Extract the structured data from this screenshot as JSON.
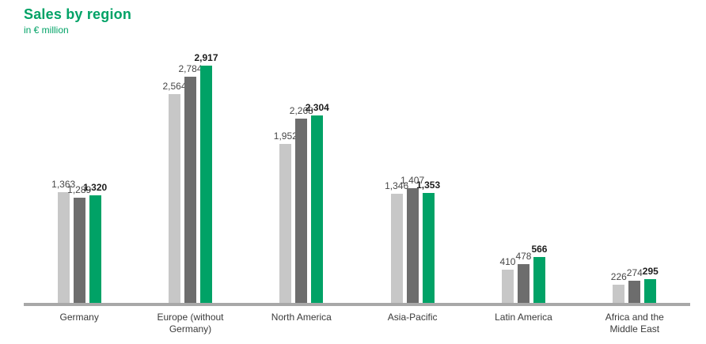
{
  "header": {
    "title": "Sales by region",
    "subtitle": "in € million"
  },
  "colors": {
    "accent_green": "#00a266",
    "bar_light_gray": "#c7c7c7",
    "bar_dark_gray": "#6d6d6d",
    "baseline_gray": "#a8a8a8"
  },
  "chart_data": {
    "type": "bar",
    "title": "Sales by region",
    "unit": "in € million",
    "categories": [
      "Germany",
      "Europe (without Germany)",
      "North America",
      "Asia-Pacific",
      "Latin America",
      "Africa and the Middle East"
    ],
    "series": [
      {
        "name": "year-1-light-gray",
        "color": "#c7c7c7",
        "bold_labels": false,
        "values": [
          1363,
          2564,
          1952,
          1346,
          410,
          226
        ]
      },
      {
        "name": "year-2-dark-gray",
        "color": "#6d6d6d",
        "bold_labels": false,
        "values": [
          1289,
          2784,
          2268,
          1407,
          478,
          274
        ]
      },
      {
        "name": "year-3-green",
        "color": "#00a266",
        "bold_labels": true,
        "values": [
          1320,
          2917,
          2304,
          1353,
          566,
          295
        ]
      }
    ],
    "ymax": 2917,
    "value_labels": true,
    "legend": "none",
    "grid": false
  }
}
